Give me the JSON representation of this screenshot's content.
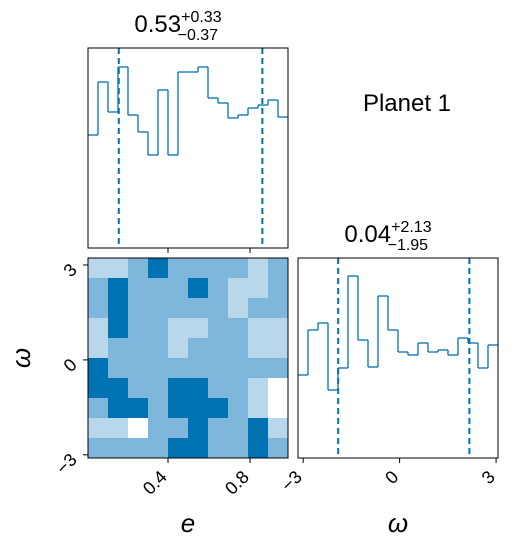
{
  "chart_data": [
    {
      "type": "histogram",
      "title": "0.53",
      "title_upper": "+0.33",
      "title_lower": "−0.37",
      "color": "#0072b2",
      "bins": [
        0.01,
        0.05875,
        0.1075,
        0.15625,
        0.205,
        0.25375,
        0.3025,
        0.35125,
        0.4,
        0.44875,
        0.4975,
        0.54625,
        0.595,
        0.64375,
        0.6925,
        0.74125,
        0.79,
        0.83875,
        0.8875,
        0.93625,
        0.985
      ],
      "values": [
        113,
        166,
        136,
        181,
        133,
        116,
        93,
        158,
        93,
        176,
        176,
        181,
        150,
        145,
        130,
        133,
        140,
        143,
        148,
        131
      ],
      "quantiles": [
        0.16,
        0.86
      ],
      "xlim": [
        0.01,
        0.985
      ],
      "ylim": [
        0,
        200
      ],
      "xticks": [
        0.4,
        0.8
      ]
    },
    {
      "type": "contour",
      "xlabel": "e",
      "ylabel": "ω",
      "colors": [
        "#ffffff",
        "#b9d7ea",
        "#7fb6dc",
        "#0072b2"
      ],
      "z": [
        [
          1,
          1,
          2,
          3,
          2,
          2,
          2,
          2,
          1,
          2
        ],
        [
          2,
          3,
          2,
          2,
          2,
          3,
          2,
          1,
          1,
          2
        ],
        [
          2,
          3,
          2,
          2,
          2,
          2,
          2,
          1,
          2,
          2
        ],
        [
          1,
          3,
          2,
          2,
          1,
          1,
          2,
          2,
          1,
          1
        ],
        [
          1,
          2,
          2,
          2,
          1,
          2,
          2,
          2,
          1,
          1
        ],
        [
          3,
          2,
          2,
          2,
          2,
          2,
          2,
          2,
          2,
          2
        ],
        [
          3,
          3,
          2,
          2,
          3,
          3,
          2,
          2,
          1,
          0
        ],
        [
          2,
          3,
          3,
          2,
          3,
          3,
          3,
          2,
          1,
          0
        ],
        [
          1,
          1,
          0,
          2,
          2,
          3,
          2,
          2,
          3,
          1
        ],
        [
          2,
          2,
          2,
          2,
          3,
          3,
          2,
          2,
          3,
          2
        ]
      ],
      "xlim": [
        0.01,
        0.985
      ],
      "ylim": [
        -3.1,
        3.22
      ],
      "xticks": [
        0.4,
        0.8
      ],
      "yticks": [
        {
          "value": -3,
          "label": "−3"
        },
        0,
        3
      ]
    },
    {
      "type": "histogram",
      "title": "0.04",
      "title_upper": "+2.13",
      "title_lower": "−1.95",
      "xlabel": "ω",
      "annotation": "Planet 1",
      "color": "#0072b2",
      "bins": [
        -3.16,
        -2.849,
        -2.538,
        -2.227,
        -1.916,
        -1.605,
        -1.294,
        -0.983,
        -0.672,
        -0.361,
        -0.05,
        0.261,
        0.572,
        0.883,
        1.194,
        1.505,
        1.816,
        2.127,
        2.438,
        2.749,
        3.06
      ],
      "values": [
        83,
        128,
        135,
        68,
        90,
        182,
        118,
        91,
        162,
        128,
        106,
        103,
        115,
        106,
        108,
        103,
        120,
        115,
        90,
        113
      ],
      "quantiles": [
        -1.91,
        2.17
      ],
      "xlim": [
        -3.16,
        3.06
      ],
      "ylim": [
        0,
        200
      ],
      "xticks": [
        {
          "value": -3,
          "label": "−3"
        },
        0,
        3
      ],
      "showticklabels": true
    }
  ]
}
